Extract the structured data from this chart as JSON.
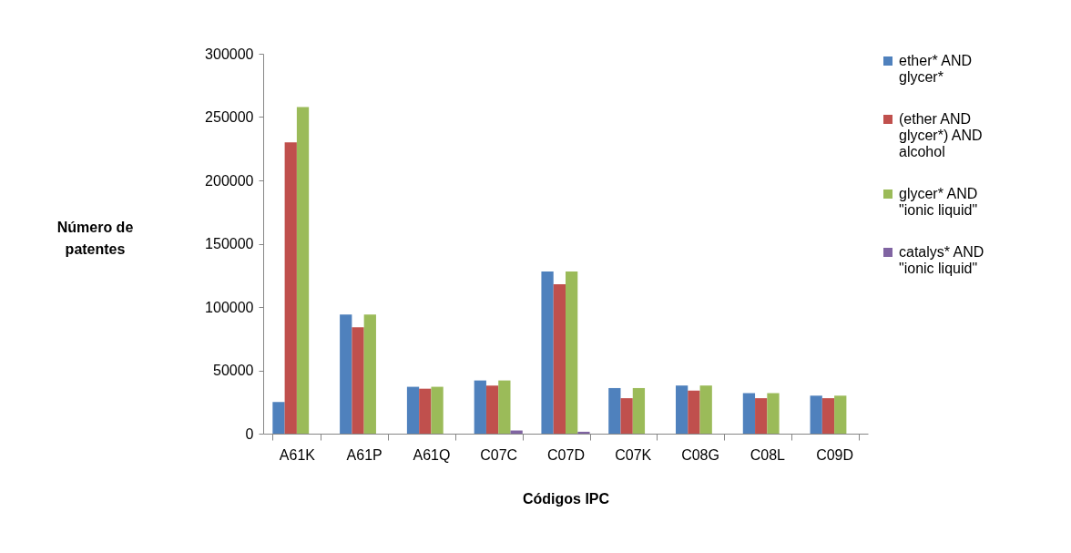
{
  "chart_data": {
    "type": "bar",
    "xlabel": "Códigos IPC",
    "ylabel": "Número de patentes",
    "categories": [
      "A61K",
      "A61P",
      "A61Q",
      "C07C",
      "C07D",
      "C07K",
      "C08G",
      "C08L",
      "C09D"
    ],
    "series": [
      {
        "name": "ether* AND glycer*",
        "color": "#4f81bd",
        "values": [
          25000,
          94000,
          37000,
          42000,
          128000,
          36000,
          38000,
          32000,
          30000
        ]
      },
      {
        "name": "(ether AND glycer*) AND alcohol",
        "color": "#c0504d",
        "values": [
          230000,
          84000,
          35500,
          38000,
          118000,
          28000,
          34000,
          28000,
          28000
        ]
      },
      {
        "name": "glycer* AND \"ionic liquid\"",
        "color": "#9bbb59",
        "values": [
          258000,
          94000,
          37000,
          42000,
          128000,
          36000,
          38000,
          32000,
          30000
        ]
      },
      {
        "name": "catalys* AND \"ionic liquid\"",
        "color": "#8064a2",
        "values": [
          null,
          null,
          null,
          2500,
          1500,
          null,
          null,
          null,
          null
        ]
      }
    ],
    "ylim": [
      0,
      300000
    ],
    "yticks": [
      0,
      50000,
      100000,
      150000,
      200000,
      250000,
      300000
    ],
    "grid": false,
    "legend": "right"
  }
}
